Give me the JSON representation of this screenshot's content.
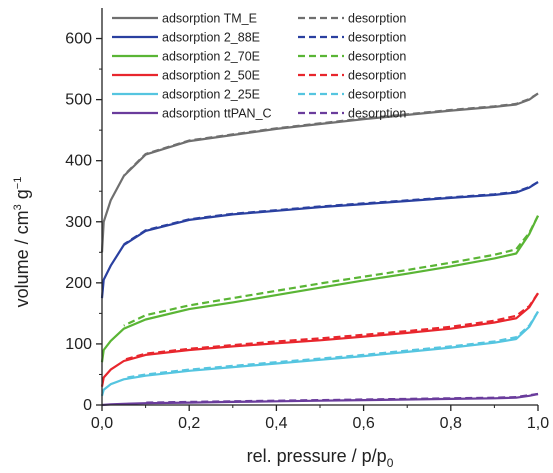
{
  "chart_data": {
    "type": "line",
    "xlabel": "rel. pressure / p/p",
    "xlabel_sub": "0",
    "ylabel_parts": [
      "volume / cm",
      "3",
      " g",
      "−1"
    ],
    "xlim": [
      0,
      1
    ],
    "ylim": [
      0,
      650
    ],
    "x_ticks": [
      "0,0",
      "0,2",
      "0,4",
      "0,6",
      "0,8",
      "1,0"
    ],
    "x_tick_values": [
      0,
      0.2,
      0.4,
      0.6,
      0.8,
      1.0
    ],
    "y_ticks": [
      "0",
      "100",
      "200",
      "300",
      "400",
      "500",
      "600"
    ],
    "y_tick_values": [
      0,
      100,
      200,
      300,
      400,
      500,
      600
    ],
    "grid": false,
    "legend_position": "top-left",
    "series": [
      {
        "name": "adsorption TM_E",
        "desorption_name": "desorption",
        "color": "#6f6f6f",
        "adsorption": [
          [
            0.0,
            250
          ],
          [
            0.004,
            300
          ],
          [
            0.02,
            335
          ],
          [
            0.05,
            375
          ],
          [
            0.1,
            410
          ],
          [
            0.2,
            432
          ],
          [
            0.3,
            442
          ],
          [
            0.4,
            452
          ],
          [
            0.5,
            460
          ],
          [
            0.6,
            468
          ],
          [
            0.7,
            475
          ],
          [
            0.8,
            482
          ],
          [
            0.9,
            488
          ],
          [
            0.95,
            492
          ],
          [
            0.98,
            500
          ],
          [
            1.0,
            510
          ]
        ],
        "desorption": [
          [
            1.0,
            510
          ],
          [
            0.98,
            501
          ],
          [
            0.95,
            493
          ],
          [
            0.9,
            489
          ],
          [
            0.8,
            483
          ],
          [
            0.7,
            476
          ],
          [
            0.6,
            469
          ],
          [
            0.5,
            461
          ],
          [
            0.4,
            453
          ],
          [
            0.3,
            443
          ],
          [
            0.2,
            433
          ],
          [
            0.1,
            411
          ],
          [
            0.05,
            376
          ]
        ]
      },
      {
        "name": "adsorption 2_88E",
        "desorption_name": "desorption",
        "color": "#2a40a0",
        "adsorption": [
          [
            0.0,
            175
          ],
          [
            0.004,
            205
          ],
          [
            0.02,
            228
          ],
          [
            0.05,
            262
          ],
          [
            0.1,
            285
          ],
          [
            0.2,
            303
          ],
          [
            0.3,
            312
          ],
          [
            0.4,
            318
          ],
          [
            0.5,
            324
          ],
          [
            0.6,
            329
          ],
          [
            0.7,
            334
          ],
          [
            0.8,
            339
          ],
          [
            0.9,
            344
          ],
          [
            0.95,
            348
          ],
          [
            0.98,
            356
          ],
          [
            1.0,
            365
          ]
        ],
        "desorption": [
          [
            1.0,
            365
          ],
          [
            0.98,
            357
          ],
          [
            0.95,
            349
          ],
          [
            0.9,
            345
          ],
          [
            0.8,
            340
          ],
          [
            0.7,
            335
          ],
          [
            0.6,
            330
          ],
          [
            0.5,
            325
          ],
          [
            0.4,
            319
          ],
          [
            0.3,
            313
          ],
          [
            0.2,
            304
          ],
          [
            0.1,
            286
          ],
          [
            0.05,
            263
          ]
        ]
      },
      {
        "name": "adsorption 2_70E",
        "desorption_name": "desorption",
        "color": "#5ab535",
        "adsorption": [
          [
            0.0,
            70
          ],
          [
            0.004,
            90
          ],
          [
            0.02,
            105
          ],
          [
            0.05,
            125
          ],
          [
            0.1,
            140
          ],
          [
            0.2,
            157
          ],
          [
            0.3,
            168
          ],
          [
            0.4,
            180
          ],
          [
            0.5,
            192
          ],
          [
            0.6,
            204
          ],
          [
            0.7,
            215
          ],
          [
            0.8,
            227
          ],
          [
            0.9,
            240
          ],
          [
            0.95,
            248
          ],
          [
            0.98,
            280
          ],
          [
            1.0,
            310
          ]
        ],
        "desorption": [
          [
            1.0,
            310
          ],
          [
            0.98,
            282
          ],
          [
            0.95,
            255
          ],
          [
            0.9,
            246
          ],
          [
            0.8,
            233
          ],
          [
            0.7,
            221
          ],
          [
            0.6,
            210
          ],
          [
            0.5,
            199
          ],
          [
            0.4,
            187
          ],
          [
            0.3,
            175
          ],
          [
            0.2,
            163
          ],
          [
            0.1,
            147
          ],
          [
            0.05,
            130
          ]
        ]
      },
      {
        "name": "adsorption 2_50E",
        "desorption_name": "desorption",
        "color": "#e8262d",
        "adsorption": [
          [
            0.0,
            30
          ],
          [
            0.004,
            45
          ],
          [
            0.02,
            58
          ],
          [
            0.05,
            72
          ],
          [
            0.1,
            82
          ],
          [
            0.2,
            90
          ],
          [
            0.3,
            96
          ],
          [
            0.4,
            101
          ],
          [
            0.5,
            106
          ],
          [
            0.6,
            112
          ],
          [
            0.7,
            118
          ],
          [
            0.8,
            125
          ],
          [
            0.9,
            135
          ],
          [
            0.95,
            142
          ],
          [
            0.98,
            160
          ],
          [
            1.0,
            183
          ]
        ],
        "desorption": [
          [
            1.0,
            183
          ],
          [
            0.98,
            162
          ],
          [
            0.95,
            146
          ],
          [
            0.9,
            138
          ],
          [
            0.8,
            128
          ],
          [
            0.7,
            121
          ],
          [
            0.6,
            115
          ],
          [
            0.5,
            109
          ],
          [
            0.4,
            104
          ],
          [
            0.3,
            98
          ],
          [
            0.2,
            92
          ],
          [
            0.1,
            84
          ],
          [
            0.05,
            74
          ]
        ]
      },
      {
        "name": "adsorption 2_25E",
        "desorption_name": "desorption",
        "color": "#55c5e0",
        "adsorption": [
          [
            0.0,
            15
          ],
          [
            0.004,
            25
          ],
          [
            0.02,
            34
          ],
          [
            0.05,
            42
          ],
          [
            0.1,
            48
          ],
          [
            0.2,
            56
          ],
          [
            0.3,
            62
          ],
          [
            0.4,
            68
          ],
          [
            0.5,
            74
          ],
          [
            0.6,
            80
          ],
          [
            0.7,
            87
          ],
          [
            0.8,
            94
          ],
          [
            0.9,
            102
          ],
          [
            0.95,
            108
          ],
          [
            0.98,
            128
          ],
          [
            1.0,
            153
          ]
        ],
        "desorption": [
          [
            1.0,
            153
          ],
          [
            0.98,
            130
          ],
          [
            0.95,
            111
          ],
          [
            0.9,
            104
          ],
          [
            0.8,
            96
          ],
          [
            0.7,
            89
          ],
          [
            0.6,
            82
          ],
          [
            0.5,
            76
          ],
          [
            0.4,
            70
          ],
          [
            0.3,
            64
          ],
          [
            0.2,
            58
          ],
          [
            0.1,
            50
          ],
          [
            0.05,
            44
          ]
        ]
      },
      {
        "name": "adsorption ttPAN_C",
        "desorption_name": "desorption",
        "color": "#6a3c9c",
        "adsorption": [
          [
            0.0,
            0
          ],
          [
            0.02,
            1
          ],
          [
            0.05,
            2
          ],
          [
            0.1,
            3
          ],
          [
            0.2,
            4
          ],
          [
            0.3,
            5
          ],
          [
            0.4,
            6
          ],
          [
            0.5,
            7
          ],
          [
            0.6,
            8
          ],
          [
            0.7,
            9
          ],
          [
            0.8,
            10
          ],
          [
            0.9,
            11
          ],
          [
            0.95,
            12
          ],
          [
            0.98,
            15
          ],
          [
            1.0,
            18
          ]
        ],
        "desorption": [
          [
            1.0,
            18
          ],
          [
            0.98,
            16
          ],
          [
            0.95,
            13
          ],
          [
            0.9,
            12
          ],
          [
            0.8,
            11
          ],
          [
            0.7,
            10
          ],
          [
            0.6,
            9
          ],
          [
            0.5,
            8
          ],
          [
            0.4,
            7
          ],
          [
            0.3,
            6
          ],
          [
            0.2,
            5
          ],
          [
            0.1,
            4
          ]
        ]
      }
    ]
  }
}
